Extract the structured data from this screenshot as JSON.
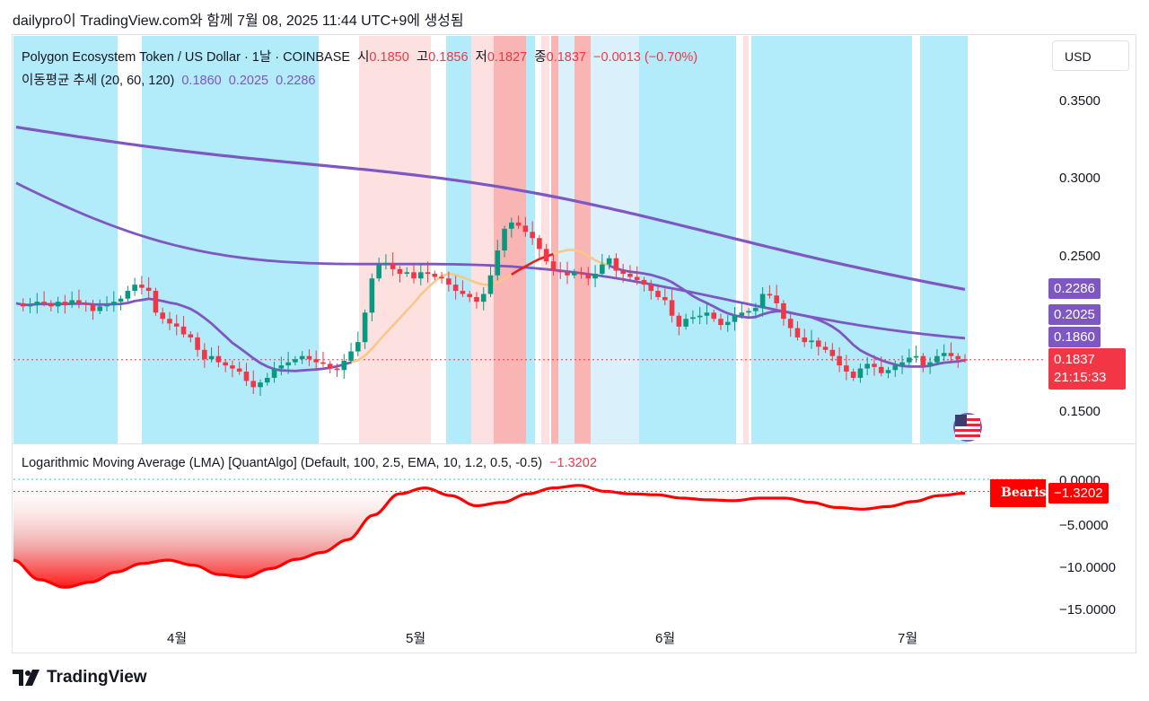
{
  "header": {
    "caption": "dailypro이 TradingView.com와 함께 7월 08, 2025 11:44 UTC+9에 생성됨"
  },
  "legend": {
    "symbol": "Polygon Ecosystem Token / US Dollar · 1날 · COINBASE",
    "open_label": "시",
    "open": "0.1850",
    "high_label": "고",
    "high": "0.1856",
    "low_label": "저",
    "low": "0.1827",
    "close_label": "종",
    "close": "0.1837",
    "change": "−0.0013 (−0.70%)",
    "ma_title": "이동평균 추세 (20, 60, 120)",
    "ma20": "0.1860",
    "ma60": "0.2025",
    "ma120": "0.2286"
  },
  "lma_legend": {
    "title": "Logarithmic Moving Average (LMA) [QuantAlgo] (Default, 100, 2.5, EMA, 10, 1.2, 0.5, -0.5)",
    "value": "−1.3202"
  },
  "currency_button": "USD",
  "price_axis": {
    "ticks": [
      "0.3500",
      "0.3000",
      "0.2500",
      "0.1500"
    ],
    "tags": {
      "ma120": "0.2286",
      "ma60": "0.2025",
      "ma20": "0.1860",
      "last": "0.1837",
      "countdown": "21:15:33"
    }
  },
  "lma_axis": {
    "ticks": [
      "0.0000",
      "−5.0000",
      "−10.0000",
      "−15.0000"
    ],
    "last_tag": "−1.3202",
    "signal_label": "Bearish"
  },
  "time_axis": {
    "labels": [
      "4월",
      "5월",
      "6월",
      "7월"
    ]
  },
  "footer": {
    "brand": "TradingView"
  },
  "colors": {
    "bull": "#089981",
    "bear": "#f23645",
    "ma": "#7e57c2",
    "bg_blue": "#b2ebf9",
    "bg_pink": "#fde0e0",
    "bg_red": "#f9b4b4",
    "bg_lightblue": "#daf1fb",
    "trend_orange": "#f8c88a",
    "trend_red": "#e52020",
    "lma_line": "#ff0000"
  },
  "chart_data": [
    {
      "type": "candlestick",
      "title": "Polygon Ecosystem Token / US Dollar · 1날 · COINBASE",
      "x_labels": [
        "4월",
        "5월",
        "6월",
        "7월"
      ],
      "ylim": [
        0.13,
        0.38
      ],
      "y_ticks": [
        0.35,
        0.3,
        0.25,
        0.15
      ],
      "last_close": 0.1837,
      "series": [
        {
          "name": "close_path",
          "values": [
            0.22,
            0.218,
            0.219,
            0.221,
            0.22,
            0.218,
            0.221,
            0.219,
            0.222,
            0.22,
            0.219,
            0.215,
            0.218,
            0.219,
            0.221,
            0.223,
            0.228,
            0.232,
            0.23,
            0.228,
            0.214,
            0.21,
            0.207,
            0.205,
            0.2,
            0.198,
            0.19,
            0.184,
            0.186,
            0.182,
            0.18,
            0.178,
            0.176,
            0.17,
            0.166,
            0.169,
            0.172,
            0.178,
            0.18,
            0.182,
            0.184,
            0.186,
            0.184,
            0.182,
            0.181,
            0.178,
            0.177,
            0.183,
            0.189,
            0.195,
            0.214,
            0.236,
            0.245,
            0.246,
            0.242,
            0.239,
            0.24,
            0.236,
            0.24,
            0.239,
            0.237,
            0.236,
            0.232,
            0.228,
            0.226,
            0.224,
            0.221,
            0.226,
            0.238,
            0.254,
            0.268,
            0.272,
            0.27,
            0.266,
            0.262,
            0.255,
            0.247,
            0.241,
            0.24,
            0.238,
            0.24,
            0.239,
            0.236,
            0.239,
            0.245,
            0.249,
            0.241,
            0.239,
            0.237,
            0.235,
            0.232,
            0.228,
            0.224,
            0.222,
            0.212,
            0.205,
            0.21,
            0.211,
            0.212,
            0.214,
            0.21,
            0.206,
            0.208,
            0.212,
            0.214,
            0.215,
            0.217,
            0.226,
            0.225,
            0.22,
            0.21,
            0.204,
            0.198,
            0.195,
            0.196,
            0.192,
            0.19,
            0.186,
            0.18,
            0.176,
            0.172,
            0.178,
            0.181,
            0.179,
            0.175,
            0.177,
            0.18,
            0.182,
            0.185,
            0.186,
            0.18,
            0.182,
            0.186,
            0.188,
            0.186,
            0.184,
            0.1837
          ]
        }
      ],
      "moving_averages": [
        {
          "name": "ma20",
          "last": 0.186
        },
        {
          "name": "ma60",
          "last": 0.2025
        },
        {
          "name": "ma120",
          "last": 0.2286
        }
      ]
    },
    {
      "type": "area",
      "title": "Logarithmic Moving Average (LMA) [QuantAlgo] (Default, 100, 2.5, EMA, 10, 1.2, 0.5, -0.5)",
      "ylim": [
        -17,
        0.5
      ],
      "y_ticks": [
        0,
        -5,
        -10,
        -15
      ],
      "last_value": -1.3202,
      "values": [
        -9.2,
        -11.5,
        -12.4,
        -11.8,
        -10.6,
        -9.6,
        -9.2,
        -9.8,
        -10.9,
        -11.2,
        -10.2,
        -9.1,
        -8.3,
        -6.8,
        -3.9,
        -1.4,
        -0.7,
        -1.6,
        -2.8,
        -2.4,
        -1.4,
        -0.7,
        -0.4,
        -1.1,
        -1.4,
        -1.5,
        -1.9,
        -2.1,
        -2.2,
        -1.9,
        -1.9,
        -2.4,
        -3.0,
        -3.2,
        -2.9,
        -2.3,
        -1.6,
        -1.3202
      ]
    }
  ]
}
